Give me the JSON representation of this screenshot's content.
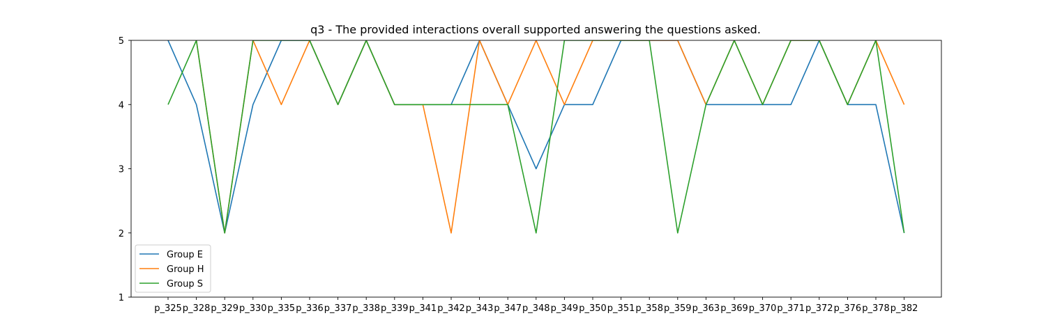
{
  "chart_data": {
    "type": "line",
    "title": "q3 - The provided interactions overall supported answering the questions asked.",
    "xlabel": "",
    "ylabel": "",
    "categories": [
      "p_325",
      "p_328",
      "p_329",
      "p_330",
      "p_335",
      "p_336",
      "p_337",
      "p_338",
      "p_339",
      "p_341",
      "p_342",
      "p_343",
      "p_347",
      "p_348",
      "p_349",
      "p_350",
      "p_351",
      "p_358",
      "p_359",
      "p_363",
      "p_369",
      "p_370",
      "p_371",
      "p_372",
      "p_376",
      "p_378",
      "p_382"
    ],
    "ylim": [
      1,
      5
    ],
    "yticks": [
      1,
      2,
      3,
      4,
      5
    ],
    "grid": false,
    "legend_position": "lower-left",
    "series": [
      {
        "name": "Group E",
        "color": "#1f77b4",
        "values": [
          5,
          4,
          2,
          4,
          5,
          5,
          4,
          5,
          4,
          4,
          4,
          5,
          4,
          3,
          4,
          4,
          5,
          5,
          5,
          4,
          4,
          4,
          4,
          5,
          4,
          4,
          2
        ]
      },
      {
        "name": "Group H",
        "color": "#ff7f0e",
        "values": [
          null,
          5,
          2,
          5,
          4,
          5,
          4,
          5,
          4,
          4,
          2,
          5,
          4,
          5,
          4,
          5,
          5,
          5,
          5,
          4,
          5,
          4,
          5,
          5,
          4,
          5,
          4
        ]
      },
      {
        "name": "Group S",
        "color": "#2ca02c",
        "values": [
          4,
          5,
          2,
          5,
          5,
          5,
          4,
          5,
          4,
          4,
          4,
          4,
          4,
          2,
          5,
          5,
          5,
          5,
          2,
          4,
          5,
          4,
          5,
          5,
          4,
          5,
          2
        ]
      }
    ]
  }
}
